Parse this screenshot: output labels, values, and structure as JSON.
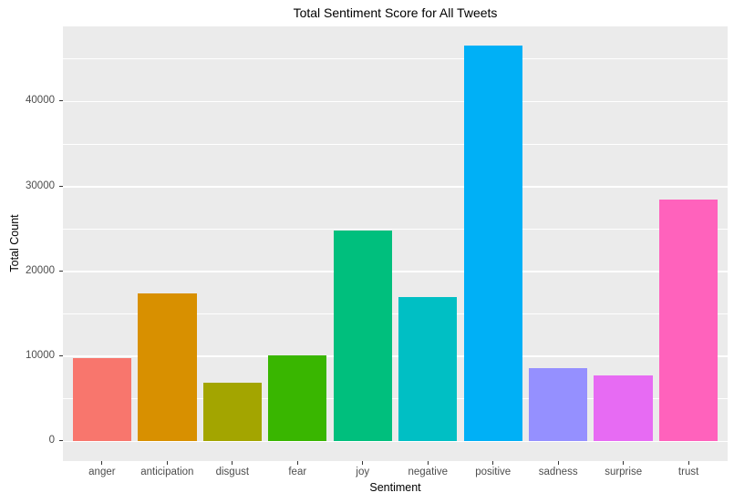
{
  "chart_data": {
    "type": "bar",
    "title": "Total Sentiment Score for All Tweets",
    "xlabel": "Sentiment",
    "ylabel": "Total Count",
    "categories": [
      "anger",
      "anticipation",
      "disgust",
      "fear",
      "joy",
      "negative",
      "positive",
      "sadness",
      "surprise",
      "trust"
    ],
    "values": [
      9700,
      17300,
      6800,
      10100,
      24800,
      16900,
      46500,
      8500,
      7700,
      28400
    ],
    "colors": [
      "#F8766D",
      "#D89000",
      "#A3A500",
      "#39B600",
      "#00BF7D",
      "#00BFC4",
      "#00B0F6",
      "#9590FF",
      "#E76BF3",
      "#FF62BC"
    ],
    "ylim": [
      0,
      48800
    ],
    "yticks": [
      0,
      10000,
      20000,
      30000,
      40000
    ],
    "ytick_labels": [
      "0",
      "10000",
      "20000",
      "30000",
      "40000"
    ],
    "yticks_minor": [
      5000,
      15000,
      25000,
      35000,
      45000
    ],
    "grid": true,
    "legend": "none",
    "panel_bg": "#EBEBEB",
    "grid_color": "#FFFFFF",
    "tick_label_color": "#4D4D4D"
  }
}
